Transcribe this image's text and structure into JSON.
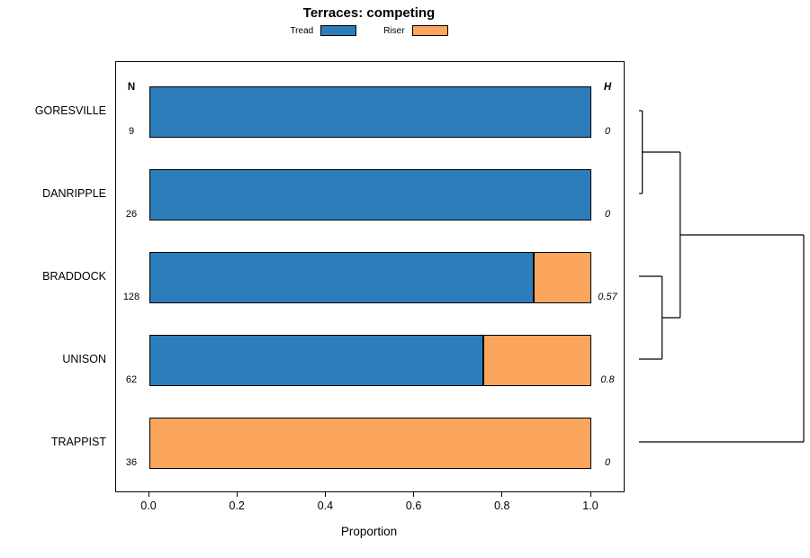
{
  "chart_data": {
    "type": "bar",
    "orientation": "horizontal",
    "stacked": true,
    "title": "Terraces: competing",
    "xlabel": "Proportion",
    "xlim": [
      0,
      1
    ],
    "xticks": [
      0,
      0.2,
      0.4,
      0.6,
      0.8,
      1
    ],
    "legend_position": "top-center",
    "series": [
      {
        "name": "Tread",
        "color": "#2D7DBA"
      },
      {
        "name": "Riser",
        "color": "#FBA55D"
      }
    ],
    "columns": {
      "n_header": "N",
      "h_header": "H"
    },
    "rows": [
      {
        "label": "GORESVILLE",
        "n": 9,
        "h": "0",
        "values": {
          "Tread": 1.0,
          "Riser": 0.0
        }
      },
      {
        "label": "DANRIPPLE",
        "n": 26,
        "h": "0",
        "values": {
          "Tread": 1.0,
          "Riser": 0.0
        }
      },
      {
        "label": "BRADDOCK",
        "n": 128,
        "h": "0.57",
        "values": {
          "Tread": 0.87,
          "Riser": 0.13
        }
      },
      {
        "label": "UNISON",
        "n": 62,
        "h": "0.8",
        "values": {
          "Tread": 0.755,
          "Riser": 0.245
        }
      },
      {
        "label": "TRAPPIST",
        "n": 36,
        "h": "0",
        "values": {
          "Tread": 0.0,
          "Riser": 1.0
        }
      }
    ],
    "dendrogram": {
      "leaf_order": [
        "GORESVILLE",
        "DANRIPPLE",
        "BRADDOCK",
        "UNISON",
        "TRAPPIST"
      ],
      "merges": [
        {
          "a": 0,
          "b": 1,
          "height": 0.02
        },
        {
          "a": 2,
          "b": 3,
          "height": 0.14
        },
        {
          "a": "m0",
          "b": "m1",
          "height": 0.25
        },
        {
          "a": "m2",
          "b": 4,
          "height": 1.0
        }
      ]
    }
  }
}
